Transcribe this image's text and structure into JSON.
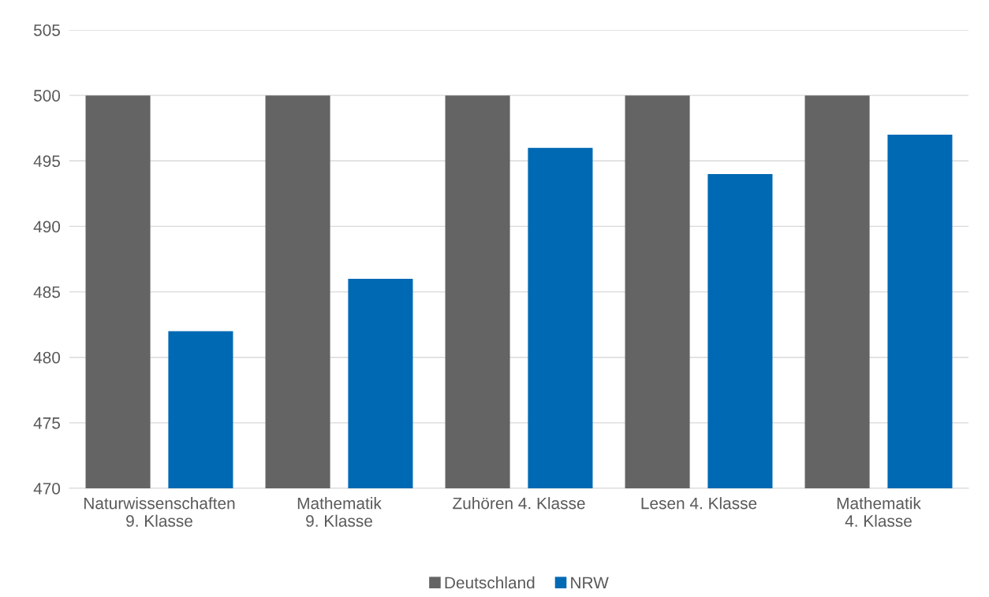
{
  "chart_data": {
    "type": "bar",
    "categories": [
      "Naturwissenschaften\n9. Klasse",
      "Mathematik\n9. Klasse",
      "Zuhören 4. Klasse",
      "Lesen 4. Klasse",
      "Mathematik\n4. Klasse"
    ],
    "series": [
      {
        "name": "Deutschland",
        "color": "#646464",
        "values": [
          500,
          500,
          500,
          500,
          500
        ]
      },
      {
        "name": "NRW",
        "color": "#0069b4",
        "values": [
          482,
          486,
          496,
          494,
          497
        ]
      }
    ],
    "ylim": [
      470,
      505
    ],
    "yticks": [
      470,
      475,
      480,
      485,
      490,
      495,
      500,
      505
    ],
    "grid": "y",
    "legend": "bottom"
  }
}
